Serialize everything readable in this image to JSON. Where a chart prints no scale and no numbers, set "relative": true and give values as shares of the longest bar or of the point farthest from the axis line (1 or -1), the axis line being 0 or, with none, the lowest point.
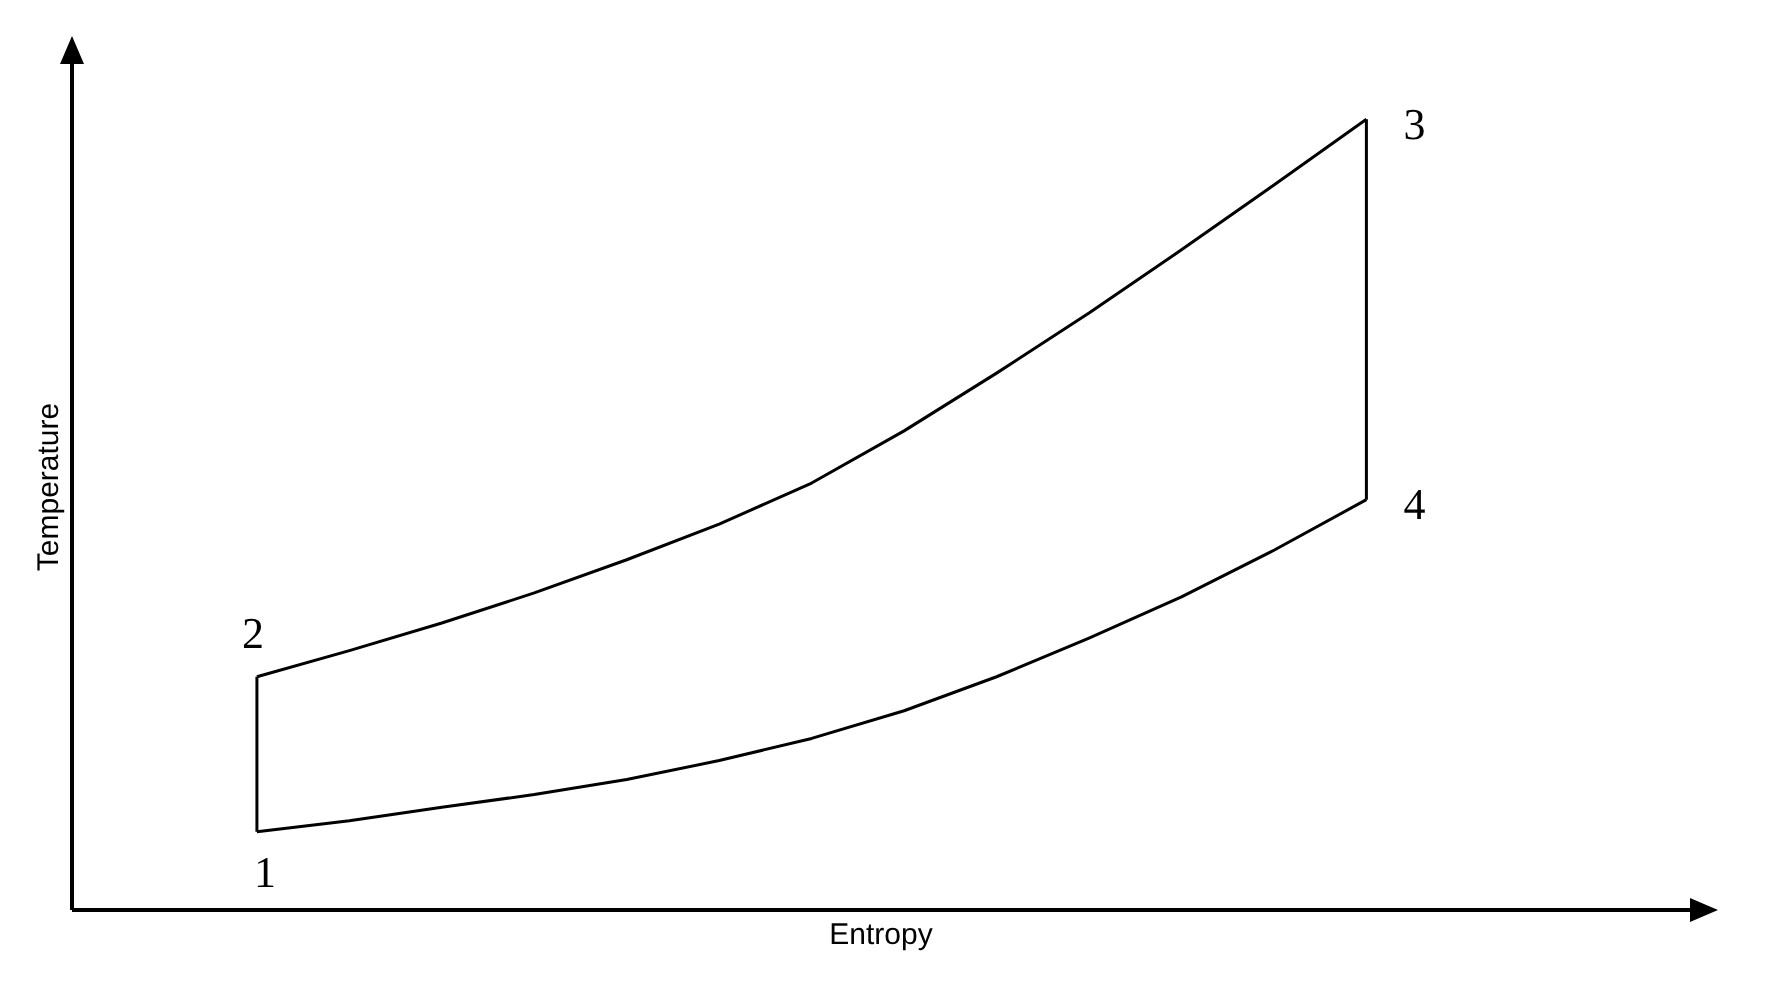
{
  "chart_data": {
    "type": "line",
    "relative": true,
    "xlabel": "Entropy",
    "ylabel": "Temperature",
    "marker": "none",
    "legend": false,
    "categories": [
      null,
      null,
      null,
      null,
      null,
      null,
      null,
      null,
      null,
      null,
      null,
      null,
      null
    ],
    "series": [
      {
        "color": "#000000",
        "values": [
          0.099,
          0.113,
          0.13,
          0.146,
          0.165,
          0.189,
          0.217,
          0.252,
          0.295,
          0.344,
          0.396,
          0.455,
          0.519
        ]
      },
      {
        "color": "#000000",
        "values": [
          0.295,
          0.328,
          0.363,
          0.401,
          0.443,
          0.488,
          0.54,
          0.606,
          0.679,
          0.755,
          0.835,
          0.917,
          1
        ]
      }
    ],
    "annotations": [
      "1",
      "2",
      "3",
      "4"
    ]
  }
}
